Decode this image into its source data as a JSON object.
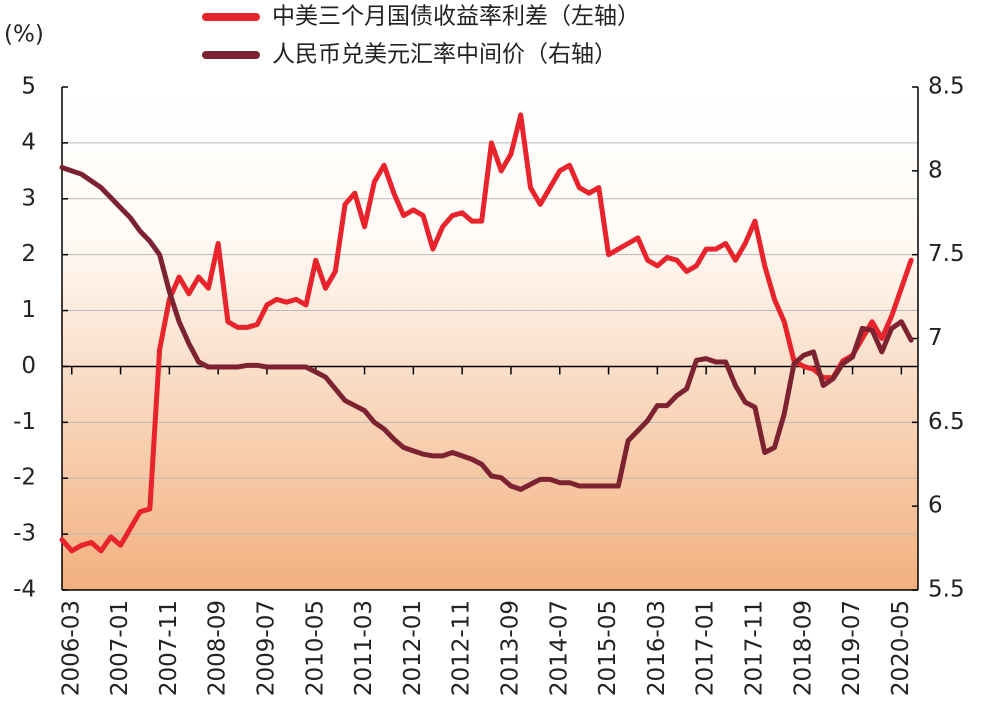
{
  "chart_data": {
    "type": "line",
    "y_label": "(%)",
    "categories": [
      null,
      "2006-03",
      null,
      null,
      null,
      null,
      "2007-01",
      null,
      null,
      null,
      null,
      "2007-11",
      null,
      null,
      null,
      null,
      "2008-09",
      null,
      null,
      null,
      null,
      "2009-07",
      null,
      null,
      null,
      null,
      "2010-05",
      null,
      null,
      null,
      null,
      "2011-03",
      null,
      null,
      null,
      null,
      "2012-01",
      null,
      null,
      null,
      null,
      "2012-11",
      null,
      null,
      null,
      null,
      "2013-09",
      null,
      null,
      null,
      null,
      "2014-07",
      null,
      null,
      null,
      null,
      "2015-05",
      null,
      null,
      null,
      null,
      "2016-03",
      null,
      null,
      null,
      null,
      "2017-01",
      null,
      null,
      null,
      null,
      "2017-11",
      null,
      null,
      null,
      null,
      "2018-09",
      null,
      null,
      null,
      null,
      "2019-07",
      null,
      null,
      null,
      null,
      "2020-05",
      null
    ],
    "series": [
      {
        "name": "中美三个月国债收益率利差（左轴）",
        "color": "#e8232b",
        "axis": "y",
        "values": [
          -3.1,
          -3.3,
          -3.2,
          -3.15,
          -3.3,
          -3.05,
          -3.2,
          -2.9,
          -2.6,
          -2.55,
          0.3,
          1.2,
          1.6,
          1.3,
          1.6,
          1.4,
          2.2,
          0.8,
          0.7,
          0.7,
          0.75,
          1.1,
          1.2,
          1.15,
          1.2,
          1.1,
          1.9,
          1.4,
          1.7,
          2.9,
          3.1,
          2.5,
          3.3,
          3.6,
          3.1,
          2.7,
          2.8,
          2.7,
          2.1,
          2.5,
          2.7,
          2.75,
          2.6,
          2.6,
          4.0,
          3.5,
          3.8,
          4.5,
          3.2,
          2.9,
          3.2,
          3.5,
          3.6,
          3.2,
          3.1,
          3.2,
          2.0,
          2.1,
          2.2,
          2.3,
          1.9,
          1.8,
          1.95,
          1.9,
          1.7,
          1.8,
          2.1,
          2.1,
          2.2,
          1.9,
          2.2,
          2.6,
          1.8,
          1.2,
          0.8,
          0.1,
          0.0,
          -0.05,
          -0.2,
          -0.2,
          0.1,
          0.2,
          0.5,
          0.8,
          0.5,
          0.9,
          1.4,
          1.9
        ]
      },
      {
        "name": "人民币兑美元汇率中间价（右轴）",
        "color": "#7d2231",
        "axis": "y2",
        "values": [
          8.02,
          8.0,
          7.98,
          7.94,
          7.9,
          7.84,
          7.78,
          7.72,
          7.64,
          7.58,
          7.5,
          7.28,
          7.1,
          6.97,
          6.86,
          6.83,
          6.83,
          6.83,
          6.83,
          6.84,
          6.84,
          6.83,
          6.83,
          6.83,
          6.83,
          6.83,
          6.8,
          6.77,
          6.7,
          6.63,
          6.6,
          6.57,
          6.5,
          6.46,
          6.4,
          6.35,
          6.33,
          6.31,
          6.3,
          6.3,
          6.32,
          6.3,
          6.28,
          6.25,
          6.18,
          6.17,
          6.12,
          6.1,
          6.13,
          6.16,
          6.16,
          6.14,
          6.14,
          6.12,
          6.12,
          6.12,
          6.12,
          6.12,
          6.39,
          6.45,
          6.51,
          6.6,
          6.6,
          6.66,
          6.7,
          6.87,
          6.88,
          6.86,
          6.86,
          6.72,
          6.62,
          6.59,
          6.32,
          6.35,
          6.55,
          6.85,
          6.9,
          6.92,
          6.72,
          6.76,
          6.85,
          6.89,
          7.06,
          7.05,
          6.92,
          7.06,
          7.1,
          6.99
        ]
      }
    ],
    "ylim": [
      -4,
      5
    ],
    "yticks": [
      -4,
      -3,
      -2,
      -1,
      0,
      1,
      2,
      3,
      4,
      5
    ],
    "y2lim": [
      5.5,
      8.5
    ],
    "y2ticks": [
      5.5,
      6,
      6.5,
      7,
      7.5,
      8,
      8.5
    ],
    "grid": true
  }
}
